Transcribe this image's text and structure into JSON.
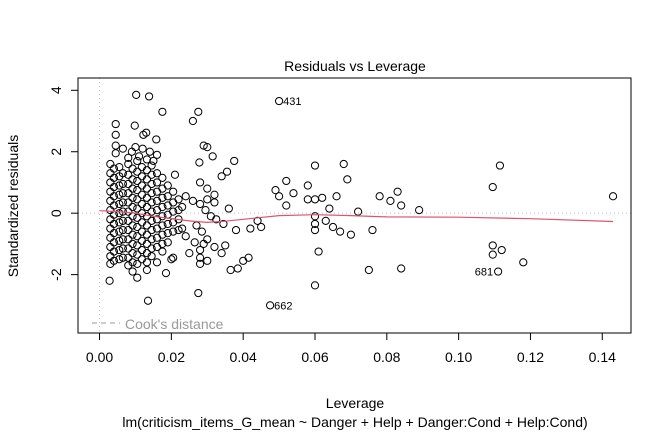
{
  "chart_data": {
    "type": "scatter",
    "title": "Residuals vs Leverage",
    "xlabel": "Leverage",
    "ylabel": "Standardized residuals",
    "subtitle": "lm(criticism_items_G_mean ~ Danger + Help + Danger:Cond + Help:Cond)",
    "xlim": [
      -0.006,
      0.148
    ],
    "ylim": [
      -3.9,
      4.4
    ],
    "x_ticks": [
      0.0,
      0.02,
      0.04,
      0.06,
      0.08,
      0.1,
      0.12,
      0.14
    ],
    "x_tick_labels": [
      "0.00",
      "0.02",
      "0.04",
      "0.06",
      "0.08",
      "0.10",
      "0.12",
      "0.14"
    ],
    "y_ticks": [
      -2,
      0,
      2,
      4
    ],
    "y_tick_labels": [
      "-2",
      "0",
      "2",
      "4"
    ],
    "grid": false,
    "reference_line": {
      "y": 0,
      "style": "dotted",
      "color": "#bebebe"
    },
    "cooks_distance_legend": {
      "label": "Cook's distance",
      "color": "#999999",
      "placement": "bottom-left"
    },
    "smoother_color": "#df536b",
    "smoother": [
      {
        "x": 0.0,
        "y": 0.08
      },
      {
        "x": 0.005,
        "y": 0.05
      },
      {
        "x": 0.01,
        "y": 0.0
      },
      {
        "x": 0.015,
        "y": -0.1
      },
      {
        "x": 0.02,
        "y": -0.18
      },
      {
        "x": 0.025,
        "y": -0.25
      },
      {
        "x": 0.03,
        "y": -0.3
      },
      {
        "x": 0.035,
        "y": -0.26
      },
      {
        "x": 0.04,
        "y": -0.2
      },
      {
        "x": 0.05,
        "y": -0.08
      },
      {
        "x": 0.06,
        "y": -0.05
      },
      {
        "x": 0.07,
        "y": -0.08
      },
      {
        "x": 0.08,
        "y": -0.12
      },
      {
        "x": 0.1,
        "y": -0.13
      },
      {
        "x": 0.12,
        "y": -0.18
      },
      {
        "x": 0.143,
        "y": -0.27
      }
    ],
    "labeled_points": [
      {
        "id": "431",
        "x": 0.05,
        "y": 3.65,
        "side": "right"
      },
      {
        "id": "662",
        "x": 0.0475,
        "y": -3.0,
        "side": "right"
      },
      {
        "id": "681",
        "x": 0.111,
        "y": -1.9,
        "side": "left"
      }
    ],
    "points": [
      [
        0.0102,
        3.85
      ],
      [
        0.0138,
        3.8
      ],
      [
        0.0175,
        3.3
      ],
      [
        0.0098,
        2.85
      ],
      [
        0.0122,
        2.55
      ],
      [
        0.013,
        2.62
      ],
      [
        0.0158,
        2.4
      ],
      [
        0.0045,
        2.9
      ],
      [
        0.0045,
        2.55
      ],
      [
        0.0045,
        2.2
      ],
      [
        0.0045,
        1.95
      ],
      [
        0.0065,
        2.1
      ],
      [
        0.008,
        1.8
      ],
      [
        0.009,
        2.0
      ],
      [
        0.01,
        2.15
      ],
      [
        0.011,
        1.85
      ],
      [
        0.012,
        2.1
      ],
      [
        0.014,
        2.0
      ],
      [
        0.015,
        1.7
      ],
      [
        0.016,
        1.9
      ],
      [
        0.003,
        1.6
      ],
      [
        0.003,
        1.3
      ],
      [
        0.003,
        1.0
      ],
      [
        0.003,
        0.7
      ],
      [
        0.003,
        0.4
      ],
      [
        0.003,
        0.1
      ],
      [
        0.003,
        -0.2
      ],
      [
        0.003,
        -0.5
      ],
      [
        0.003,
        -0.8
      ],
      [
        0.003,
        -1.1
      ],
      [
        0.003,
        -1.4
      ],
      [
        0.003,
        -1.65
      ],
      [
        0.004,
        1.45
      ],
      [
        0.004,
        1.15
      ],
      [
        0.004,
        0.85
      ],
      [
        0.004,
        0.55
      ],
      [
        0.004,
        0.25
      ],
      [
        0.004,
        -0.05
      ],
      [
        0.004,
        -0.35
      ],
      [
        0.004,
        -0.65
      ],
      [
        0.004,
        -0.95
      ],
      [
        0.004,
        -1.25
      ],
      [
        0.004,
        -1.55
      ],
      [
        0.0055,
        1.5
      ],
      [
        0.0055,
        1.2
      ],
      [
        0.0055,
        0.9
      ],
      [
        0.0055,
        0.6
      ],
      [
        0.0055,
        0.3
      ],
      [
        0.0055,
        0.0
      ],
      [
        0.0055,
        -0.3
      ],
      [
        0.0055,
        -0.6
      ],
      [
        0.0055,
        -0.9
      ],
      [
        0.0055,
        -1.2
      ],
      [
        0.0055,
        -1.5
      ],
      [
        0.0065,
        1.3
      ],
      [
        0.0065,
        0.95
      ],
      [
        0.0065,
        0.65
      ],
      [
        0.0065,
        0.35
      ],
      [
        0.0065,
        0.05
      ],
      [
        0.0065,
        -0.25
      ],
      [
        0.0065,
        -0.55
      ],
      [
        0.0065,
        -0.85
      ],
      [
        0.0065,
        -1.15
      ],
      [
        0.0065,
        -1.45
      ],
      [
        0.008,
        1.6
      ],
      [
        0.008,
        1.25
      ],
      [
        0.008,
        0.95
      ],
      [
        0.008,
        0.65
      ],
      [
        0.008,
        0.35
      ],
      [
        0.008,
        0.05
      ],
      [
        0.008,
        -0.25
      ],
      [
        0.008,
        -0.55
      ],
      [
        0.008,
        -0.85
      ],
      [
        0.008,
        -1.15
      ],
      [
        0.008,
        -1.45
      ],
      [
        0.008,
        -1.7
      ],
      [
        0.0092,
        1.45
      ],
      [
        0.0092,
        1.1
      ],
      [
        0.0092,
        0.8
      ],
      [
        0.0092,
        0.5
      ],
      [
        0.0092,
        0.2
      ],
      [
        0.0092,
        -0.1
      ],
      [
        0.0092,
        -0.4
      ],
      [
        0.0092,
        -0.7
      ],
      [
        0.0092,
        -1.0
      ],
      [
        0.0092,
        -1.3
      ],
      [
        0.0092,
        -1.6
      ],
      [
        0.0092,
        -1.9
      ],
      [
        0.0105,
        1.7
      ],
      [
        0.0105,
        1.35
      ],
      [
        0.0105,
        1.05
      ],
      [
        0.0105,
        0.75
      ],
      [
        0.0105,
        0.45
      ],
      [
        0.0105,
        0.15
      ],
      [
        0.0105,
        -0.15
      ],
      [
        0.0105,
        -0.45
      ],
      [
        0.0105,
        -0.75
      ],
      [
        0.0105,
        -1.05
      ],
      [
        0.0105,
        -1.35
      ],
      [
        0.0105,
        -1.65
      ],
      [
        0.0105,
        -2.1
      ],
      [
        0.0118,
        1.5
      ],
      [
        0.0118,
        1.2
      ],
      [
        0.0118,
        0.9
      ],
      [
        0.0118,
        0.6
      ],
      [
        0.0118,
        0.3
      ],
      [
        0.0118,
        0.0
      ],
      [
        0.0118,
        -0.3
      ],
      [
        0.0118,
        -0.6
      ],
      [
        0.0118,
        -0.9
      ],
      [
        0.0118,
        -1.2
      ],
      [
        0.0118,
        -1.5
      ],
      [
        0.0132,
        1.75
      ],
      [
        0.0132,
        1.4
      ],
      [
        0.0132,
        1.1
      ],
      [
        0.0132,
        0.8
      ],
      [
        0.0132,
        0.5
      ],
      [
        0.0132,
        0.2
      ],
      [
        0.0132,
        -0.1
      ],
      [
        0.0132,
        -0.4
      ],
      [
        0.0132,
        -0.7
      ],
      [
        0.0132,
        -1.0
      ],
      [
        0.0132,
        -1.3
      ],
      [
        0.0132,
        -1.6
      ],
      [
        0.0132,
        -1.85
      ],
      [
        0.0145,
        1.55
      ],
      [
        0.0145,
        1.25
      ],
      [
        0.0145,
        0.95
      ],
      [
        0.0145,
        0.65
      ],
      [
        0.0145,
        0.35
      ],
      [
        0.0145,
        0.05
      ],
      [
        0.0145,
        -0.25
      ],
      [
        0.0145,
        -0.55
      ],
      [
        0.0145,
        -0.85
      ],
      [
        0.0145,
        -1.15
      ],
      [
        0.0145,
        -1.4
      ],
      [
        0.016,
        1.3
      ],
      [
        0.016,
        1.0
      ],
      [
        0.016,
        0.7
      ],
      [
        0.016,
        0.4
      ],
      [
        0.016,
        0.1
      ],
      [
        0.016,
        -0.2
      ],
      [
        0.016,
        -0.5
      ],
      [
        0.016,
        -0.8
      ],
      [
        0.016,
        -1.1
      ],
      [
        0.0175,
        1.15
      ],
      [
        0.0175,
        0.8
      ],
      [
        0.0175,
        0.5
      ],
      [
        0.0175,
        0.2
      ],
      [
        0.0175,
        -0.1
      ],
      [
        0.0175,
        -0.4
      ],
      [
        0.0175,
        -0.7
      ],
      [
        0.0175,
        -1.0
      ],
      [
        0.0175,
        -1.25
      ],
      [
        0.019,
        0.9
      ],
      [
        0.019,
        0.55
      ],
      [
        0.019,
        0.25
      ],
      [
        0.019,
        -0.05
      ],
      [
        0.019,
        -0.35
      ],
      [
        0.019,
        -0.65
      ],
      [
        0.019,
        -0.95
      ],
      [
        0.0205,
        0.7
      ],
      [
        0.0205,
        0.35
      ],
      [
        0.0205,
        0.05
      ],
      [
        0.0205,
        -0.3
      ],
      [
        0.0205,
        -0.6
      ],
      [
        0.0205,
        -1.45
      ],
      [
        0.021,
        1.25
      ],
      [
        0.022,
        0.45
      ],
      [
        0.022,
        0.1
      ],
      [
        0.022,
        -0.2
      ],
      [
        0.022,
        -0.55
      ],
      [
        0.023,
        0.2
      ],
      [
        0.023,
        -0.5
      ],
      [
        0.024,
        0.55
      ],
      [
        0.024,
        -0.75
      ],
      [
        0.0028,
        -2.2
      ],
      [
        0.0135,
        -2.85
      ],
      [
        0.016,
        -1.6
      ],
      [
        0.0185,
        -1.95
      ],
      [
        0.02,
        -1.5
      ],
      [
        0.026,
        3.0
      ],
      [
        0.0275,
        3.3
      ],
      [
        0.029,
        2.2
      ],
      [
        0.03,
        2.15
      ],
      [
        0.0315,
        1.85
      ],
      [
        0.0278,
        1.65
      ],
      [
        0.0355,
        1.35
      ],
      [
        0.0375,
        1.7
      ],
      [
        0.034,
        1.2
      ],
      [
        0.028,
        1.0
      ],
      [
        0.03,
        0.8
      ],
      [
        0.032,
        0.6
      ],
      [
        0.026,
        0.4
      ],
      [
        0.028,
        0.3
      ],
      [
        0.0295,
        0.1
      ],
      [
        0.031,
        -0.1
      ],
      [
        0.0325,
        -0.2
      ],
      [
        0.0345,
        -0.35
      ],
      [
        0.036,
        0.15
      ],
      [
        0.027,
        -0.4
      ],
      [
        0.0285,
        -0.6
      ],
      [
        0.03,
        -0.85
      ],
      [
        0.032,
        -1.1
      ],
      [
        0.034,
        -1.3
      ],
      [
        0.028,
        -1.2
      ],
      [
        0.028,
        -1.45
      ],
      [
        0.028,
        -1.65
      ],
      [
        0.03,
        -1.55
      ],
      [
        0.025,
        -1.3
      ],
      [
        0.035,
        -1.05
      ],
      [
        0.0365,
        -1.85
      ],
      [
        0.0385,
        -1.8
      ],
      [
        0.04,
        -1.55
      ],
      [
        0.0415,
        -1.45
      ],
      [
        0.038,
        -0.55
      ],
      [
        0.042,
        -0.5
      ],
      [
        0.044,
        -0.25
      ],
      [
        0.045,
        -0.45
      ],
      [
        0.0275,
        -2.6
      ],
      [
        0.029,
        -1.0
      ],
      [
        0.0265,
        -0.95
      ],
      [
        0.032,
        0.35
      ],
      [
        0.03,
        0.45
      ],
      [
        0.05,
        3.65
      ],
      [
        0.0475,
        -3.0
      ],
      [
        0.111,
        -1.9
      ],
      [
        0.052,
        1.05
      ],
      [
        0.05,
        0.55
      ],
      [
        0.049,
        0.75
      ],
      [
        0.058,
        0.9
      ],
      [
        0.06,
        1.55
      ],
      [
        0.054,
        0.65
      ],
      [
        0.052,
        0.25
      ],
      [
        0.058,
        0.45
      ],
      [
        0.06,
        0.45
      ],
      [
        0.062,
        0.5
      ],
      [
        0.064,
        0.15
      ],
      [
        0.066,
        0.55
      ],
      [
        0.068,
        1.6
      ],
      [
        0.069,
        1.1
      ],
      [
        0.06,
        -0.1
      ],
      [
        0.06,
        -0.35
      ],
      [
        0.06,
        -0.55
      ],
      [
        0.061,
        -1.25
      ],
      [
        0.06,
        -2.35
      ],
      [
        0.063,
        -0.25
      ],
      [
        0.065,
        -0.45
      ],
      [
        0.067,
        -0.6
      ],
      [
        0.07,
        -0.7
      ],
      [
        0.072,
        0.05
      ],
      [
        0.076,
        -0.55
      ],
      [
        0.075,
        -1.85
      ],
      [
        0.078,
        0.55
      ],
      [
        0.081,
        0.4
      ],
      [
        0.083,
        0.7
      ],
      [
        0.084,
        0.25
      ],
      [
        0.084,
        -1.8
      ],
      [
        0.089,
        0.1
      ],
      [
        0.1095,
        0.85
      ],
      [
        0.1115,
        1.55
      ],
      [
        0.1095,
        -1.05
      ],
      [
        0.1095,
        -1.35
      ],
      [
        0.112,
        -1.2
      ],
      [
        0.118,
        -1.6
      ],
      [
        0.143,
        0.55
      ]
    ]
  }
}
